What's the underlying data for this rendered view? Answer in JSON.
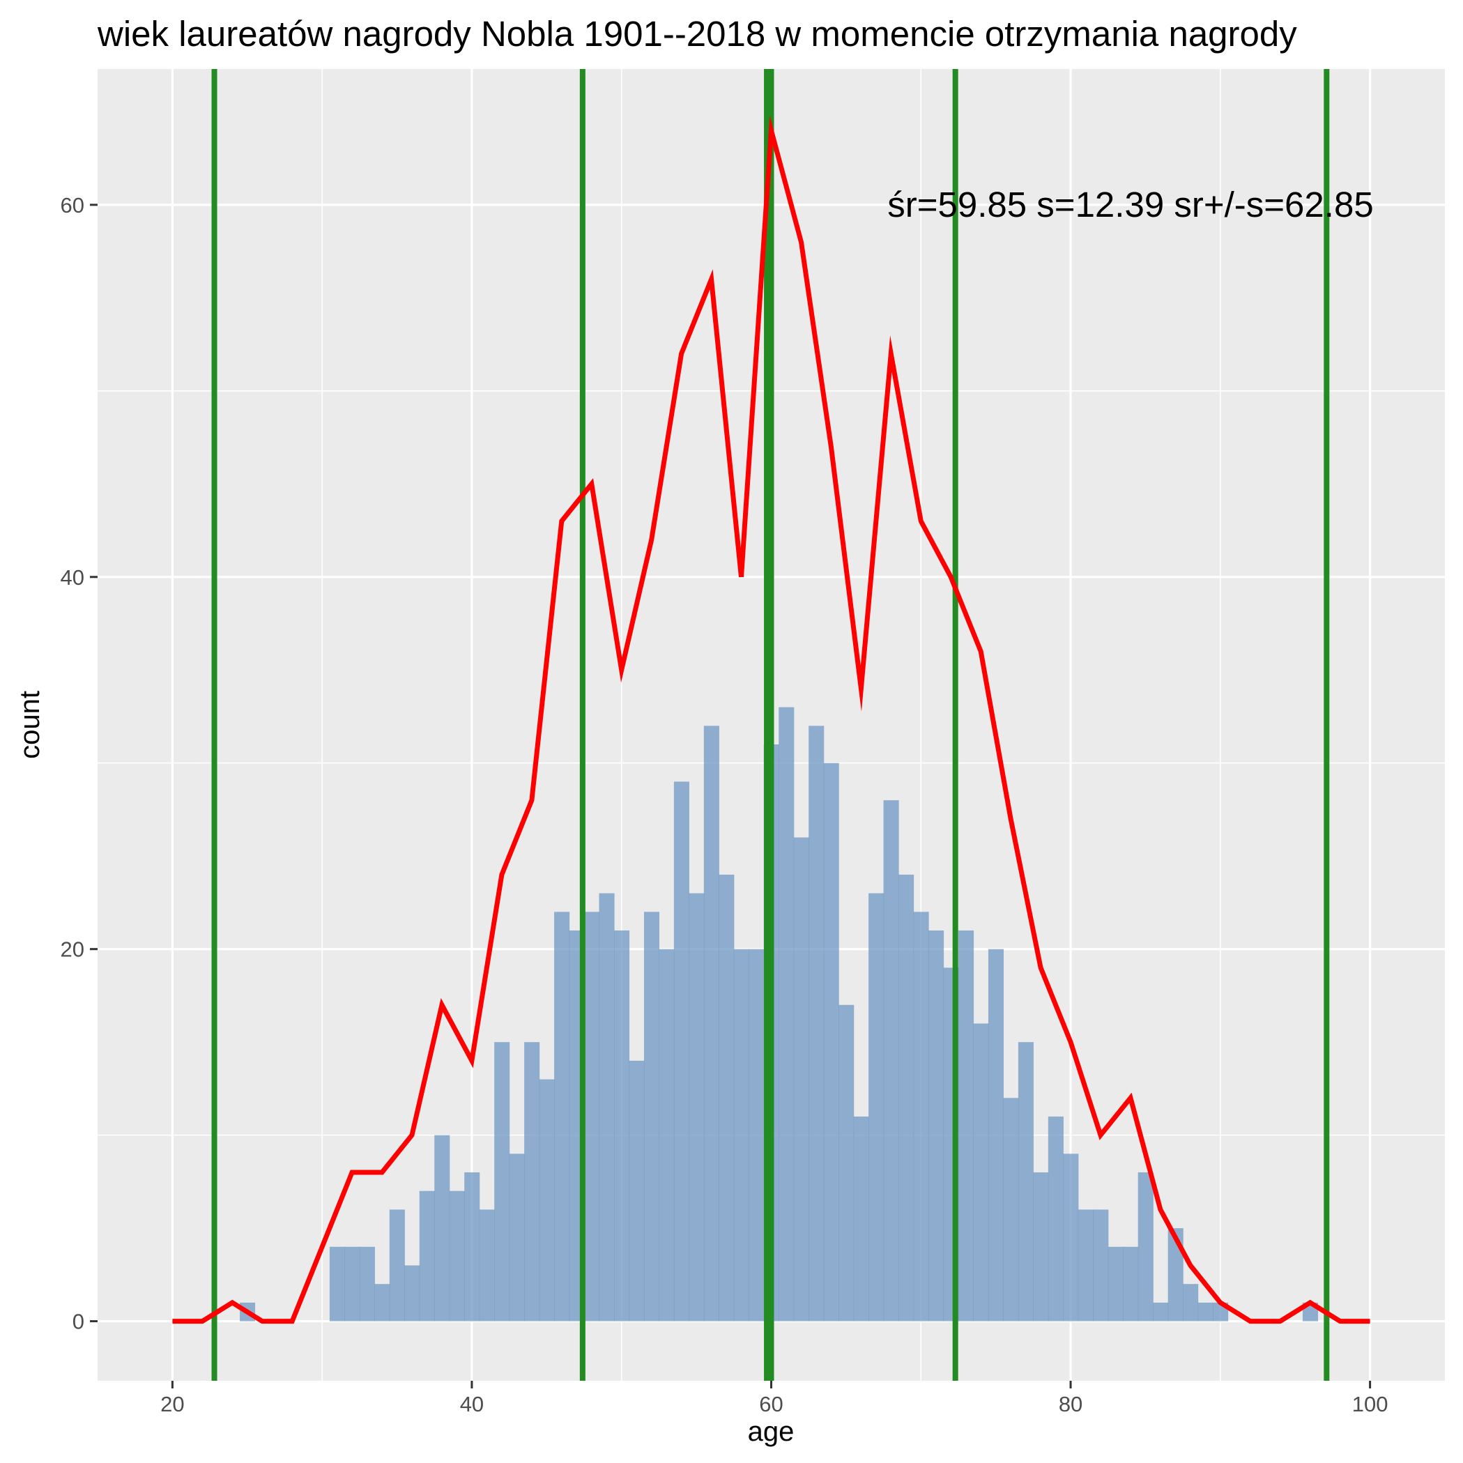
{
  "chart_data": {
    "type": "bar",
    "title": "wiek laureatów nagrody Nobla 1901--2018 w momencie otrzymania nagrody",
    "xlabel": "age",
    "ylabel": "count",
    "xlim": [
      15,
      105
    ],
    "ylim": [
      -3.2,
      67.3
    ],
    "x_ticks": [
      20,
      40,
      60,
      80,
      100
    ],
    "y_ticks": [
      0,
      20,
      40,
      60
    ],
    "grid": true,
    "histogram": {
      "bin_width": 1,
      "bins": [
        {
          "x": 25,
          "count": 1
        },
        {
          "x": 31,
          "count": 4
        },
        {
          "x": 32,
          "count": 4
        },
        {
          "x": 33,
          "count": 4
        },
        {
          "x": 34,
          "count": 2
        },
        {
          "x": 35,
          "count": 6
        },
        {
          "x": 36,
          "count": 3
        },
        {
          "x": 37,
          "count": 7
        },
        {
          "x": 38,
          "count": 10
        },
        {
          "x": 39,
          "count": 7
        },
        {
          "x": 40,
          "count": 8
        },
        {
          "x": 41,
          "count": 6
        },
        {
          "x": 42,
          "count": 15
        },
        {
          "x": 43,
          "count": 9
        },
        {
          "x": 44,
          "count": 15
        },
        {
          "x": 45,
          "count": 13
        },
        {
          "x": 46,
          "count": 22
        },
        {
          "x": 47,
          "count": 21
        },
        {
          "x": 48,
          "count": 22
        },
        {
          "x": 49,
          "count": 23
        },
        {
          "x": 50,
          "count": 21
        },
        {
          "x": 51,
          "count": 14
        },
        {
          "x": 52,
          "count": 22
        },
        {
          "x": 53,
          "count": 20
        },
        {
          "x": 54,
          "count": 29
        },
        {
          "x": 55,
          "count": 23
        },
        {
          "x": 56,
          "count": 32
        },
        {
          "x": 57,
          "count": 24
        },
        {
          "x": 58,
          "count": 20
        },
        {
          "x": 59,
          "count": 20
        },
        {
          "x": 60,
          "count": 31
        },
        {
          "x": 61,
          "count": 33
        },
        {
          "x": 62,
          "count": 26
        },
        {
          "x": 63,
          "count": 32
        },
        {
          "x": 64,
          "count": 30
        },
        {
          "x": 65,
          "count": 17
        },
        {
          "x": 66,
          "count": 11
        },
        {
          "x": 67,
          "count": 23
        },
        {
          "x": 68,
          "count": 28
        },
        {
          "x": 69,
          "count": 24
        },
        {
          "x": 70,
          "count": 22
        },
        {
          "x": 71,
          "count": 21
        },
        {
          "x": 72,
          "count": 19
        },
        {
          "x": 73,
          "count": 21
        },
        {
          "x": 74,
          "count": 16
        },
        {
          "x": 75,
          "count": 20
        },
        {
          "x": 76,
          "count": 12
        },
        {
          "x": 77,
          "count": 15
        },
        {
          "x": 78,
          "count": 8
        },
        {
          "x": 79,
          "count": 11
        },
        {
          "x": 80,
          "count": 9
        },
        {
          "x": 81,
          "count": 6
        },
        {
          "x": 82,
          "count": 6
        },
        {
          "x": 83,
          "count": 4
        },
        {
          "x": 84,
          "count": 4
        },
        {
          "x": 85,
          "count": 8
        },
        {
          "x": 86,
          "count": 1
        },
        {
          "x": 87,
          "count": 5
        },
        {
          "x": 88,
          "count": 2
        },
        {
          "x": 89,
          "count": 1
        },
        {
          "x": 90,
          "count": 1
        },
        {
          "x": 96,
          "count": 1
        }
      ],
      "color": "#6f98c4"
    },
    "frequency_polygon": {
      "color": "#ff0000",
      "x": [
        20,
        22,
        24,
        26,
        28,
        30,
        32,
        34,
        36,
        38,
        40,
        42,
        44,
        46,
        48,
        50,
        52,
        54,
        56,
        58,
        60,
        62,
        64,
        66,
        68,
        70,
        72,
        74,
        76,
        78,
        80,
        82,
        84,
        86,
        88,
        90,
        92,
        94,
        96,
        98,
        100
      ],
      "y": [
        0,
        0,
        1,
        0,
        0,
        4,
        8,
        8,
        10,
        17,
        14,
        24,
        28,
        43,
        45,
        35,
        42,
        52,
        56,
        40,
        64,
        58,
        47,
        34,
        52,
        43,
        40,
        36,
        27,
        19,
        15,
        10,
        12,
        6,
        3,
        1,
        0,
        0,
        1,
        0,
        0
      ]
    },
    "vertical_lines": {
      "color": "#228b22",
      "x": [
        22.8,
        47.4,
        59.7,
        72.3,
        97.1
      ],
      "thick_x": 60
    },
    "annotation": {
      "text": "śr=59.85 s=12.39 sr+/-s=62.85",
      "x": 84,
      "y": 60
    }
  }
}
